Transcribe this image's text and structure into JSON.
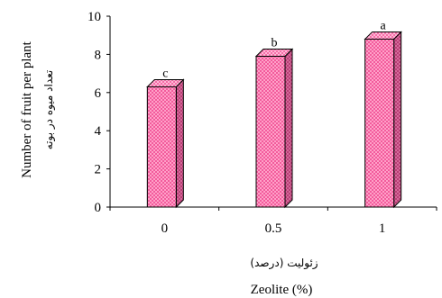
{
  "chart_data": {
    "type": "bar",
    "categories": [
      "0",
      "0.5",
      "1"
    ],
    "values": [
      6.3,
      7.9,
      8.8
    ],
    "data_labels": [
      "c",
      "b",
      "a"
    ],
    "ylim": [
      0,
      10
    ],
    "yticks": [
      "0",
      "2",
      "4",
      "6",
      "8",
      "10"
    ],
    "ylabel": "Number of fruit per plant",
    "ylabel_fa": "تعداد میوه در بوته",
    "xlabel": "Zeolite (%)",
    "xlabel_fa": "زئولیت (درصد)",
    "grid": false,
    "legend": "none",
    "bar_color": "#f25c9c",
    "bar_side_color": "#c2457d",
    "bar_top_color": "#f77fb3",
    "bar_pattern": "checkered"
  }
}
